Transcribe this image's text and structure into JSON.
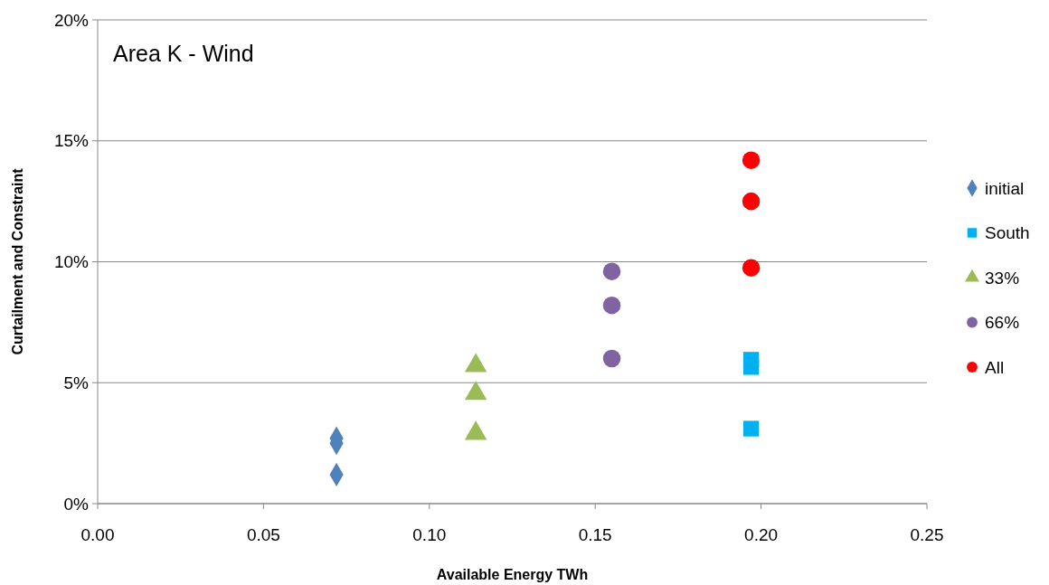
{
  "chart_data": {
    "type": "scatter",
    "xlabel": "Available Energy TWh",
    "ylabel": "Curtailment and Constraint",
    "annotations": [
      "Area K - Wind"
    ],
    "xlim": [
      0,
      0.25
    ],
    "xticks": [
      {
        "value": 0,
        "label": "0.00"
      },
      {
        "value": 0.05,
        "label": "0.05"
      },
      {
        "value": 0.1,
        "label": "0.10"
      },
      {
        "value": 0.15,
        "label": "0.15"
      },
      {
        "value": 0.2,
        "label": "0.20"
      },
      {
        "value": 0.25,
        "label": "0.25"
      }
    ],
    "ylim": [
      0,
      20
    ],
    "yticks": [
      {
        "value": 0,
        "label": "0%"
      },
      {
        "value": 5,
        "label": "5%"
      },
      {
        "value": 10,
        "label": "10%"
      },
      {
        "value": 15,
        "label": "15%"
      },
      {
        "value": 20,
        "label": "20%"
      }
    ],
    "grid": "y",
    "legend": "right",
    "series": [
      {
        "name": "initial",
        "color": "#4f81bd",
        "marker": "diamond",
        "x": [
          0.072,
          0.072,
          0.072
        ],
        "values": [
          2.7,
          2.5,
          1.2
        ]
      },
      {
        "name": "South",
        "color": "#00b0f0",
        "marker": "square",
        "x": [
          0.197,
          0.197,
          0.197
        ],
        "values": [
          5.95,
          5.65,
          3.1
        ]
      },
      {
        "name": "33%",
        "color": "#9bbb59",
        "marker": "triangle",
        "x": [
          0.114,
          0.114,
          0.114
        ],
        "values": [
          5.7,
          4.55,
          2.9
        ]
      },
      {
        "name": "66%",
        "color": "#8064a2",
        "marker": "circle",
        "x": [
          0.155,
          0.155,
          0.155
        ],
        "values": [
          9.6,
          8.2,
          6.0
        ]
      },
      {
        "name": "All",
        "color": "#ff0000",
        "marker": "circle",
        "x": [
          0.197,
          0.197,
          0.197
        ],
        "values": [
          14.2,
          12.5,
          9.75
        ]
      }
    ]
  }
}
